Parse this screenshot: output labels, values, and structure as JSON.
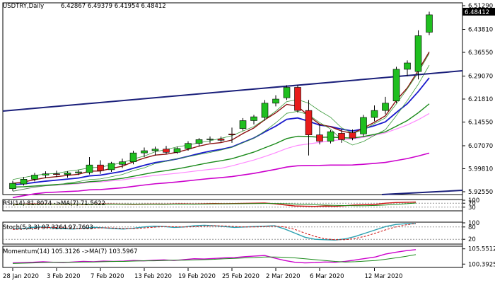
{
  "header": {
    "symbol_timeframe": "USDTRY,Daily",
    "ohlc": "6.42867 6.49379 6.41954 6.48412"
  },
  "main_axis": {
    "ticks": [
      "6.51290",
      "6.43810",
      "6.36550",
      "6.29070",
      "6.21810",
      "6.14550",
      "6.07070",
      "5.99810",
      "5.92550"
    ],
    "current_price_label": "6.48412"
  },
  "rsi": {
    "label": "RSI(14) 81.8074 ->MA(7) 71.5622",
    "ticks": [
      "100",
      "70",
      "30"
    ],
    "values": [
      58,
      60,
      62,
      61,
      60,
      59,
      60,
      58,
      60,
      62,
      61,
      60,
      59,
      60,
      61,
      60,
      62,
      63,
      61,
      64,
      66,
      65,
      66,
      68,
      70,
      72,
      64,
      52,
      42,
      40,
      38,
      41,
      39,
      45,
      52,
      55,
      58,
      70,
      76,
      79,
      82
    ],
    "ma": [
      56,
      57,
      58,
      59,
      60,
      60,
      60,
      60,
      60,
      60,
      61,
      61,
      61,
      60,
      60,
      60,
      61,
      61,
      61,
      62,
      63,
      63,
      64,
      65,
      66,
      67,
      67,
      65,
      62,
      58,
      54,
      51,
      48,
      46,
      45,
      45,
      47,
      52,
      58,
      64,
      71
    ]
  },
  "stoch": {
    "label": "Stoch(5,3,3) 97.3264 97.7603",
    "ticks": [
      "100",
      "80",
      "20"
    ],
    "values": [
      70,
      72,
      78,
      80,
      76,
      72,
      70,
      74,
      78,
      76,
      72,
      70,
      74,
      80,
      84,
      82,
      78,
      80,
      86,
      88,
      86,
      82,
      78,
      80,
      82,
      84,
      86,
      70,
      50,
      30,
      20,
      18,
      16,
      22,
      34,
      50,
      66,
      82,
      92,
      96,
      97
    ],
    "signal": [
      68,
      70,
      74,
      77,
      78,
      76,
      73,
      72,
      74,
      76,
      75,
      73,
      72,
      75,
      79,
      82,
      81,
      80,
      81,
      84,
      86,
      85,
      82,
      80,
      80,
      82,
      84,
      80,
      68,
      50,
      34,
      22,
      18,
      18,
      24,
      35,
      50,
      66,
      80,
      90,
      97
    ]
  },
  "momentum": {
    "label": "Momentum(14) 105.3126 ->MA(7) 103.5967",
    "ticks": [
      "105.5512",
      "100.3925"
    ],
    "values": [
      100.8,
      100.9,
      101.0,
      101.2,
      101.0,
      100.9,
      101.1,
      101.3,
      101.2,
      101.4,
      101.3,
      101.4,
      101.6,
      101.5,
      101.7,
      101.8,
      101.6,
      101.9,
      102.2,
      102.1,
      102.3,
      102.5,
      102.6,
      102.9,
      103.1,
      103.3,
      102.4,
      101.6,
      101.0,
      100.8,
      100.9,
      101.1,
      101.0,
      101.3,
      101.8,
      102.3,
      102.8,
      103.8,
      104.4,
      104.9,
      105.3
    ],
    "ma": [
      100.6,
      100.7,
      100.8,
      100.9,
      101.0,
      101.0,
      101.0,
      101.1,
      101.1,
      101.2,
      101.3,
      101.3,
      101.4,
      101.5,
      101.5,
      101.6,
      101.7,
      101.7,
      101.8,
      101.9,
      102.0,
      102.2,
      102.3,
      102.5,
      102.6,
      102.8,
      102.8,
      102.7,
      102.5,
      102.2,
      101.9,
      101.6,
      101.3,
      101.1,
      101.2,
      101.4,
      101.6,
      102.0,
      102.5,
      103.0,
      103.6
    ]
  },
  "x_axis": {
    "labels": [
      "28 Jan 2020",
      "3 Feb 2020",
      "7 Feb 2020",
      "13 Feb 2020",
      "19 Feb 2020",
      "25 Feb 2020",
      "2 Mar 2020",
      "6 Mar 2020",
      "12 Mar 2020"
    ],
    "label_bars": [
      0,
      4,
      8,
      12,
      16,
      20,
      24,
      28,
      33
    ]
  },
  "colors": {
    "bull": "#1fbf1f",
    "bear": "#e81c1c",
    "trendline": "#1a1f7a",
    "axis": "#000000"
  },
  "chart_data": {
    "type": "candlestick",
    "title": "USDTRY,Daily",
    "ylim": [
      5.9255,
      6.5129
    ],
    "candles": [
      {
        "o": 5.935,
        "h": 5.96,
        "l": 5.928,
        "c": 5.952
      },
      {
        "o": 5.95,
        "h": 5.972,
        "l": 5.945,
        "c": 5.965
      },
      {
        "o": 5.965,
        "h": 5.985,
        "l": 5.958,
        "c": 5.978
      },
      {
        "o": 5.978,
        "h": 5.99,
        "l": 5.968,
        "c": 5.982
      },
      {
        "o": 5.982,
        "h": 5.992,
        "l": 5.972,
        "c": 5.98
      },
      {
        "o": 5.98,
        "h": 5.99,
        "l": 5.97,
        "c": 5.985
      },
      {
        "o": 5.985,
        "h": 5.995,
        "l": 5.978,
        "c": 5.988
      },
      {
        "o": 5.986,
        "h": 6.035,
        "l": 5.98,
        "c": 6.01
      },
      {
        "o": 6.01,
        "h": 6.025,
        "l": 5.982,
        "c": 5.992
      },
      {
        "o": 5.995,
        "h": 6.02,
        "l": 5.988,
        "c": 6.015
      },
      {
        "o": 6.012,
        "h": 6.03,
        "l": 6.0,
        "c": 6.02
      },
      {
        "o": 6.02,
        "h": 6.055,
        "l": 6.012,
        "c": 6.048
      },
      {
        "o": 6.048,
        "h": 6.065,
        "l": 6.035,
        "c": 6.055
      },
      {
        "o": 6.055,
        "h": 6.068,
        "l": 6.04,
        "c": 6.06
      },
      {
        "o": 6.06,
        "h": 6.07,
        "l": 6.045,
        "c": 6.05
      },
      {
        "o": 6.05,
        "h": 6.068,
        "l": 6.045,
        "c": 6.062
      },
      {
        "o": 6.062,
        "h": 6.085,
        "l": 6.055,
        "c": 6.078
      },
      {
        "o": 6.078,
        "h": 6.095,
        "l": 6.068,
        "c": 6.09
      },
      {
        "o": 6.09,
        "h": 6.1,
        "l": 6.08,
        "c": 6.092
      },
      {
        "o": 6.092,
        "h": 6.1,
        "l": 6.082,
        "c": 6.088
      },
      {
        "o": 6.108,
        "h": 6.128,
        "l": 6.08,
        "c": 6.105
      },
      {
        "o": 6.125,
        "h": 6.158,
        "l": 6.118,
        "c": 6.15
      },
      {
        "o": 6.15,
        "h": 6.168,
        "l": 6.138,
        "c": 6.162
      },
      {
        "o": 6.16,
        "h": 6.215,
        "l": 6.15,
        "c": 6.205
      },
      {
        "o": 6.205,
        "h": 6.23,
        "l": 6.195,
        "c": 6.218
      },
      {
        "o": 6.222,
        "h": 6.262,
        "l": 6.215,
        "c": 6.255
      },
      {
        "o": 6.255,
        "h": 6.262,
        "l": 6.175,
        "c": 6.182
      },
      {
        "o": 6.182,
        "h": 6.215,
        "l": 6.04,
        "c": 6.105
      },
      {
        "o": 6.105,
        "h": 6.14,
        "l": 6.075,
        "c": 6.085
      },
      {
        "o": 6.085,
        "h": 6.12,
        "l": 6.078,
        "c": 6.115
      },
      {
        "o": 6.11,
        "h": 6.125,
        "l": 6.08,
        "c": 6.09
      },
      {
        "o": 6.112,
        "h": 6.122,
        "l": 6.088,
        "c": 6.095
      },
      {
        "o": 6.108,
        "h": 6.168,
        "l": 6.1,
        "c": 6.16
      },
      {
        "o": 6.16,
        "h": 6.198,
        "l": 6.148,
        "c": 6.182
      },
      {
        "o": 6.182,
        "h": 6.225,
        "l": 6.17,
        "c": 6.205
      },
      {
        "o": 6.212,
        "h": 6.32,
        "l": 6.205,
        "c": 6.312
      },
      {
        "o": 6.312,
        "h": 6.34,
        "l": 6.29,
        "c": 6.332
      },
      {
        "o": 6.305,
        "h": 6.435,
        "l": 6.28,
        "c": 6.418
      },
      {
        "o": 6.429,
        "h": 6.494,
        "l": 6.42,
        "c": 6.484
      }
    ]
  }
}
